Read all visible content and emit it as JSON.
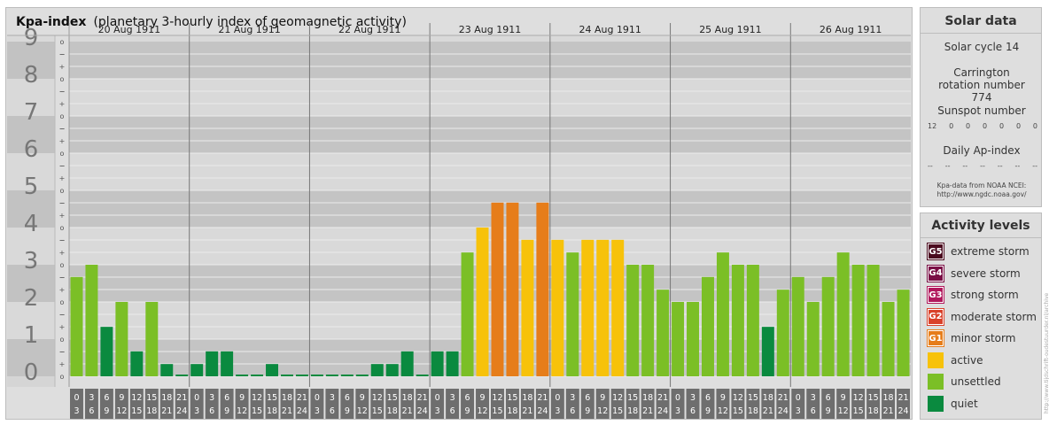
{
  "chart": {
    "title_bold": "Kpa-index",
    "title_rest": "(planetary 3-hourly index of geomagnetic activity)"
  },
  "chart_data": {
    "type": "bar",
    "title": "Kpa-index (planetary 3-hourly index of geomagnetic activity)",
    "ylim": [
      0,
      9
    ],
    "y_ticks": [
      "0",
      "1",
      "2",
      "3",
      "4",
      "5",
      "6",
      "7",
      "8",
      "9"
    ],
    "sub_ticks": [
      "o",
      "+",
      "−"
    ],
    "days": [
      "20 Aug 1911",
      "21 Aug 1911",
      "22 Aug 1911",
      "23 Aug 1911",
      "24 Aug 1911",
      "25 Aug 1911",
      "26 Aug 1911"
    ],
    "interval_start": [
      "0",
      "3",
      "6",
      "9",
      "12",
      "15",
      "18",
      "21"
    ],
    "interval_end": [
      "3",
      "6",
      "9",
      "12",
      "15",
      "18",
      "21",
      "24"
    ],
    "values": [
      [
        2.67,
        3.0,
        1.33,
        2.0,
        0.67,
        2.0,
        0.33,
        0.0
      ],
      [
        0.33,
        0.67,
        0.67,
        0.0,
        0.0,
        0.33,
        0.0,
        0.0
      ],
      [
        0.0,
        0.0,
        0.0,
        0.0,
        0.33,
        0.33,
        0.67,
        0.0
      ],
      [
        0.67,
        0.67,
        3.33,
        4.0,
        4.67,
        4.67,
        3.67,
        4.67
      ],
      [
        3.67,
        3.33,
        3.67,
        3.67,
        3.67,
        3.0,
        3.0,
        2.33
      ],
      [
        2.0,
        2.0,
        2.67,
        3.33,
        3.0,
        3.0,
        1.33,
        2.33
      ],
      [
        2.67,
        2.0,
        2.67,
        3.33,
        3.0,
        3.0,
        2.0,
        2.33
      ]
    ],
    "levels": {
      "quiet": "#0a8a3f",
      "unsettled": "#7bbf26",
      "active": "#f7c20a",
      "minor_storm": "#e67d1a"
    },
    "grid": true
  },
  "solar": {
    "title": "Solar data",
    "cycle": "Solar cycle 14",
    "carrington": "Carrington rotation number 774",
    "sunspot_label": "Sunspot number",
    "sunspots": [
      "12",
      "0",
      "0",
      "0",
      "0",
      "0",
      "0"
    ],
    "ap_label": "Daily Ap-index",
    "ap_values": [
      "--",
      "--",
      "--",
      "--",
      "--",
      "--",
      "--"
    ],
    "credit_line1": "Kpa-data from NOAA NCEI:",
    "credit_line2": "http://www.ngdc.noaa.gov/"
  },
  "levels": {
    "title": "Activity levels",
    "items": [
      {
        "code": "G5",
        "label": "extreme storm",
        "color": "#4a0a1e"
      },
      {
        "code": "G4",
        "label": "severe storm",
        "color": "#7a0e45"
      },
      {
        "code": "G3",
        "label": "strong storm",
        "color": "#b1185c"
      },
      {
        "code": "G2",
        "label": "moderate storm",
        "color": "#d9412a"
      },
      {
        "code": "G1",
        "label": "minor storm",
        "color": "#e67d1a"
      },
      {
        "code": "",
        "label": "active",
        "color": "#f7c20a"
      },
      {
        "code": "",
        "label": "unsettled",
        "color": "#7bbf26"
      },
      {
        "code": "",
        "label": "quiet",
        "color": "#0a8a3f"
      }
    ]
  },
  "side_credit": "http://www.tijdschrift-oudestuurder.nl/archive"
}
